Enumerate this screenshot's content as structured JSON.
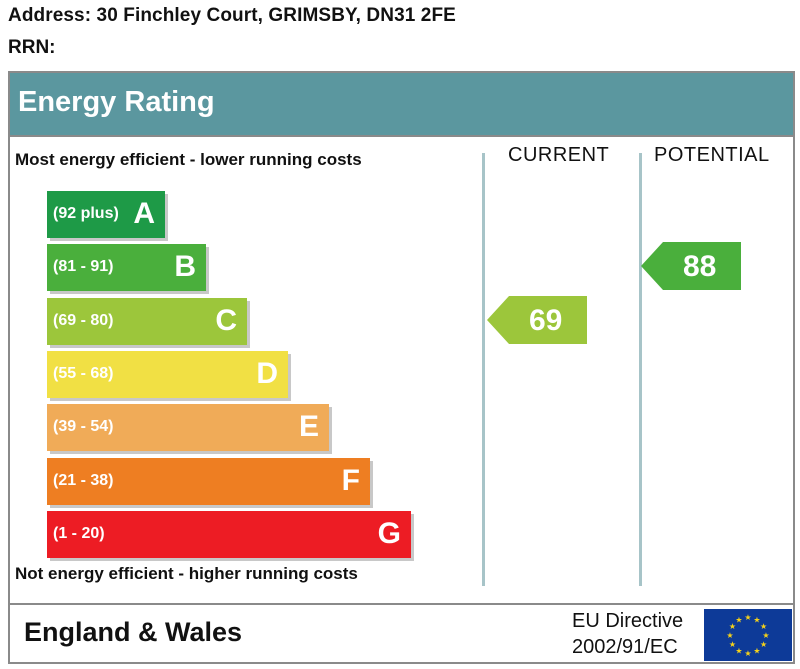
{
  "property": {
    "address_label": "Address: 30 Finchley Court, GRIMSBY, DN31 2FE",
    "rrn_label": "RRN:"
  },
  "header": {
    "title": "Energy Rating"
  },
  "notes": {
    "top": "Most energy efficient - lower running costs",
    "bottom": "Not energy efficient - higher running costs"
  },
  "columns": {
    "current": "CURRENT",
    "potential": "POTENTIAL"
  },
  "footer": {
    "region": "England & Wales",
    "directive_line1": "EU Directive",
    "directive_line2": "2002/91/EC"
  },
  "chart_data": {
    "type": "bar",
    "title": "Energy Rating",
    "categories": [
      "A",
      "B",
      "C",
      "D",
      "E",
      "F",
      "G"
    ],
    "bands": [
      {
        "letter": "A",
        "range": "(92 plus)",
        "color": "#1e9a47"
      },
      {
        "letter": "B",
        "range": "(81 - 91)",
        "color": "#4aaf3c"
      },
      {
        "letter": "C",
        "range": "(69 - 80)",
        "color": "#9cc63b"
      },
      {
        "letter": "D",
        "range": "(55 - 68)",
        "color": "#f1e044"
      },
      {
        "letter": "E",
        "range": "(39 - 54)",
        "color": "#f0ab58"
      },
      {
        "letter": "F",
        "range": "(21 - 38)",
        "color": "#ee7e22"
      },
      {
        "letter": "G",
        "range": "(1 - 20)",
        "color": "#ed1c24"
      }
    ],
    "current": {
      "value": 69,
      "band": "C",
      "color": "#9cc63b"
    },
    "potential": {
      "value": 88,
      "band": "B",
      "color": "#4aaf3c"
    }
  }
}
